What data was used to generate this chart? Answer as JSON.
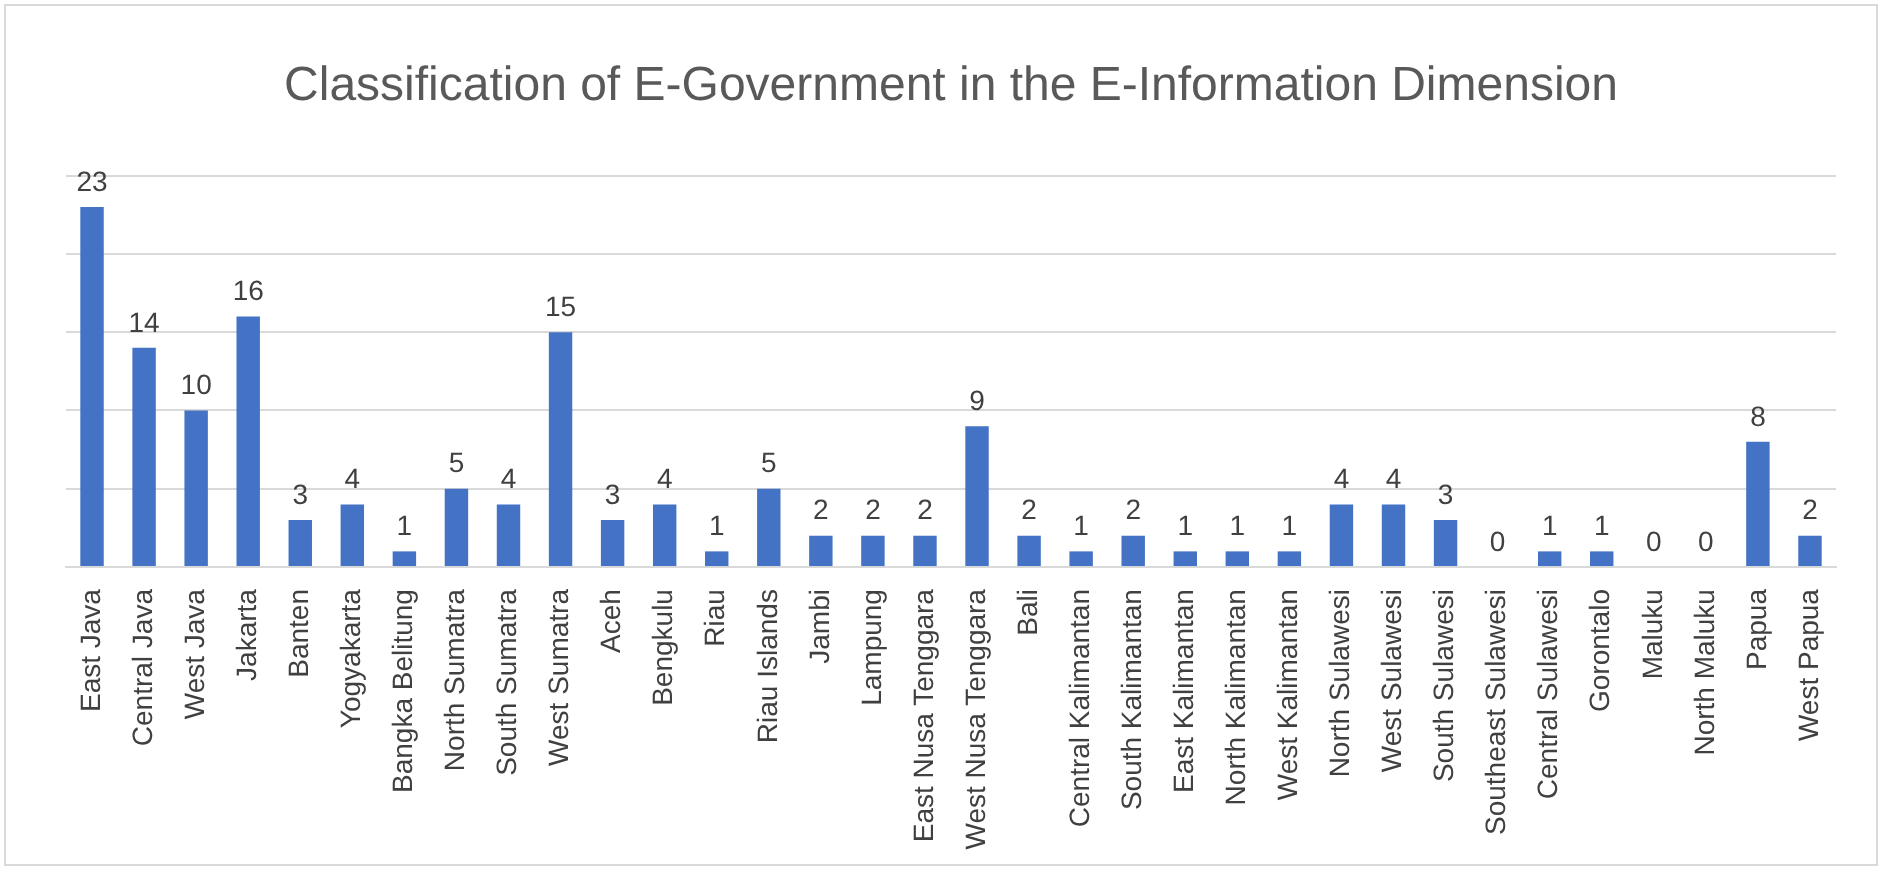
{
  "chart_data": {
    "type": "bar",
    "title": "Classification of E-Government in the E-Information Dimension",
    "categories": [
      "East Java",
      "Central Java",
      "West Java",
      "Jakarta",
      "Banten",
      "Yogyakarta",
      "Bangka Belitung",
      "North Sumatra",
      "South Sumatra",
      "West Sumatra",
      "Aceh",
      "Bengkulu",
      "Riau",
      "Riau Islands",
      "Jambi",
      "Lampung",
      "East Nusa Tenggara",
      "West Nusa Tenggara",
      "Bali",
      "Central Kalimantan",
      "South Kalimantan",
      "East Kalimantan",
      "North Kalimantan",
      "West Kalimantan",
      "North Sulawesi",
      "West Sulawesi",
      "South Sulawesi",
      "Southeast Sulawesi",
      "Central Sulawesi",
      "Gorontalo",
      "Maluku",
      "North Maluku",
      "Papua",
      "West Papua"
    ],
    "values": [
      23,
      14,
      10,
      16,
      3,
      4,
      1,
      5,
      4,
      15,
      3,
      4,
      1,
      5,
      2,
      2,
      2,
      9,
      2,
      1,
      2,
      1,
      1,
      1,
      4,
      4,
      3,
      0,
      1,
      1,
      0,
      0,
      8,
      2
    ],
    "color": "#4472c4",
    "ylim": [
      0,
      25
    ],
    "yticks": [
      {
        "value": 0,
        "label": null
      },
      {
        "value": 5,
        "label": null
      },
      {
        "value": 10,
        "label": null
      },
      {
        "value": 15,
        "label": null
      },
      {
        "value": 20,
        "label": null
      },
      {
        "value": 25,
        "label": null
      }
    ],
    "tick_labels": "x",
    "grid": "y",
    "data_labels": true,
    "legend": false
  }
}
